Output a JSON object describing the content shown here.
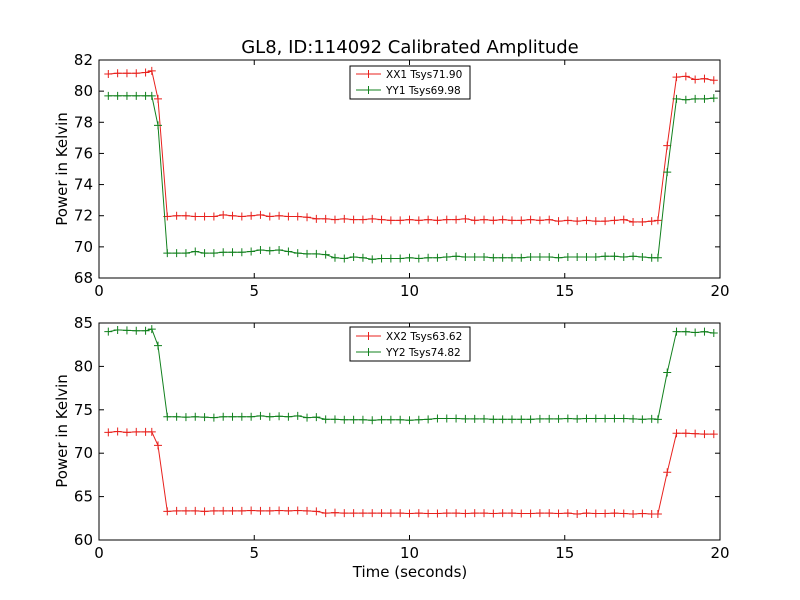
{
  "figure": {
    "title": "GL8, ID:114092 Calibrated Amplitude",
    "xlabel": "Time (seconds)"
  },
  "chart_data": [
    {
      "type": "line",
      "title": "GL8, ID:114092 Calibrated Amplitude",
      "xlabel": "",
      "ylabel": "Power in Kelvin",
      "xlim": [
        0,
        20
      ],
      "ylim": [
        68,
        82
      ],
      "xticks": [
        0,
        5,
        10,
        15,
        20
      ],
      "yticks": [
        68,
        70,
        72,
        74,
        76,
        78,
        80,
        82
      ],
      "grid": false,
      "legend_position": "top-center",
      "x": [
        0.3,
        0.6,
        0.9,
        1.2,
        1.5,
        1.7,
        1.9,
        2.2,
        2.5,
        2.8,
        3.1,
        3.4,
        3.7,
        4.0,
        4.3,
        4.6,
        4.9,
        5.2,
        5.5,
        5.8,
        6.1,
        6.4,
        6.7,
        7.0,
        7.3,
        7.6,
        7.9,
        8.2,
        8.5,
        8.8,
        9.1,
        9.4,
        9.7,
        10.0,
        10.3,
        10.6,
        10.9,
        11.2,
        11.5,
        11.8,
        12.1,
        12.4,
        12.7,
        13.0,
        13.3,
        13.6,
        13.9,
        14.2,
        14.5,
        14.8,
        15.1,
        15.4,
        15.7,
        16.0,
        16.3,
        16.6,
        16.9,
        17.2,
        17.5,
        17.8,
        18.0,
        18.3,
        18.6,
        18.9,
        19.2,
        19.5,
        19.8
      ],
      "series": [
        {
          "name": "XX1 Tsys71.90",
          "color": "#e8211d",
          "values": [
            81.1,
            81.15,
            81.15,
            81.15,
            81.2,
            81.3,
            79.5,
            71.95,
            72.0,
            72.0,
            71.95,
            71.95,
            71.95,
            72.05,
            72.0,
            71.95,
            72.0,
            72.05,
            71.95,
            72.0,
            71.95,
            71.95,
            71.9,
            71.8,
            71.8,
            71.75,
            71.8,
            71.75,
            71.75,
            71.8,
            71.75,
            71.7,
            71.7,
            71.75,
            71.7,
            71.75,
            71.7,
            71.75,
            71.75,
            71.8,
            71.7,
            71.75,
            71.7,
            71.75,
            71.7,
            71.7,
            71.75,
            71.7,
            71.75,
            71.65,
            71.7,
            71.65,
            71.7,
            71.65,
            71.65,
            71.7,
            71.75,
            71.6,
            71.6,
            71.65,
            71.7,
            76.5,
            80.9,
            80.95,
            80.75,
            80.8,
            80.7
          ]
        },
        {
          "name": "YY1 Tsys69.98",
          "color": "#11801d",
          "values": [
            79.7,
            79.7,
            79.7,
            79.7,
            79.7,
            79.7,
            77.8,
            69.6,
            69.6,
            69.6,
            69.7,
            69.6,
            69.6,
            69.65,
            69.65,
            69.65,
            69.7,
            69.8,
            69.75,
            69.8,
            69.7,
            69.6,
            69.55,
            69.55,
            69.5,
            69.3,
            69.25,
            69.35,
            69.3,
            69.2,
            69.25,
            69.25,
            69.25,
            69.3,
            69.25,
            69.3,
            69.3,
            69.35,
            69.4,
            69.35,
            69.35,
            69.35,
            69.3,
            69.3,
            69.3,
            69.3,
            69.35,
            69.35,
            69.35,
            69.3,
            69.35,
            69.35,
            69.35,
            69.35,
            69.4,
            69.4,
            69.35,
            69.4,
            69.35,
            69.3,
            69.3,
            74.8,
            79.5,
            79.45,
            79.5,
            79.5,
            79.55
          ]
        }
      ]
    },
    {
      "type": "line",
      "title": "",
      "xlabel": "Time (seconds)",
      "ylabel": "Power in Kelvin",
      "xlim": [
        0,
        20
      ],
      "ylim": [
        60,
        85
      ],
      "xticks": [
        0,
        5,
        10,
        15,
        20
      ],
      "yticks": [
        60,
        65,
        70,
        75,
        80,
        85
      ],
      "grid": false,
      "legend_position": "top-center",
      "x": [
        0.3,
        0.6,
        0.9,
        1.2,
        1.5,
        1.7,
        1.9,
        2.2,
        2.5,
        2.8,
        3.1,
        3.4,
        3.7,
        4.0,
        4.3,
        4.6,
        4.9,
        5.2,
        5.5,
        5.8,
        6.1,
        6.4,
        6.7,
        7.0,
        7.3,
        7.6,
        7.9,
        8.2,
        8.5,
        8.8,
        9.1,
        9.4,
        9.7,
        10.0,
        10.3,
        10.6,
        10.9,
        11.2,
        11.5,
        11.8,
        12.1,
        12.4,
        12.7,
        13.0,
        13.3,
        13.6,
        13.9,
        14.2,
        14.5,
        14.8,
        15.1,
        15.4,
        15.7,
        16.0,
        16.3,
        16.6,
        16.9,
        17.2,
        17.5,
        17.8,
        18.0,
        18.3,
        18.6,
        18.9,
        19.2,
        19.5,
        19.8
      ],
      "series": [
        {
          "name": "XX2 Tsys63.62",
          "color": "#e8211d",
          "values": [
            72.4,
            72.5,
            72.4,
            72.45,
            72.45,
            72.45,
            70.9,
            63.3,
            63.35,
            63.35,
            63.35,
            63.3,
            63.35,
            63.35,
            63.35,
            63.35,
            63.4,
            63.35,
            63.35,
            63.4,
            63.35,
            63.4,
            63.35,
            63.3,
            63.1,
            63.15,
            63.1,
            63.1,
            63.1,
            63.1,
            63.1,
            63.1,
            63.1,
            63.05,
            63.1,
            63.05,
            63.05,
            63.1,
            63.1,
            63.05,
            63.1,
            63.1,
            63.05,
            63.1,
            63.1,
            63.05,
            63.05,
            63.1,
            63.1,
            63.05,
            63.1,
            63.0,
            63.1,
            63.05,
            63.05,
            63.1,
            63.05,
            63.0,
            63.05,
            63.0,
            63.0,
            67.8,
            72.3,
            72.3,
            72.25,
            72.2,
            72.2
          ]
        },
        {
          "name": "YY2 Tsys74.82",
          "color": "#11801d",
          "values": [
            84.0,
            84.2,
            84.15,
            84.1,
            84.1,
            84.3,
            82.4,
            74.2,
            74.2,
            74.15,
            74.2,
            74.15,
            74.1,
            74.2,
            74.2,
            74.2,
            74.2,
            74.3,
            74.2,
            74.25,
            74.2,
            74.3,
            74.1,
            74.15,
            73.9,
            73.9,
            73.85,
            73.85,
            73.85,
            73.8,
            73.85,
            73.85,
            73.85,
            73.8,
            73.85,
            73.9,
            74.0,
            74.0,
            74.0,
            73.95,
            73.95,
            73.95,
            73.9,
            73.9,
            73.9,
            73.9,
            73.9,
            73.95,
            73.95,
            73.95,
            74.0,
            73.95,
            74.0,
            74.0,
            74.0,
            74.0,
            74.0,
            73.95,
            73.9,
            73.95,
            73.9,
            79.3,
            84.0,
            84.0,
            83.9,
            84.0,
            83.85
          ]
        }
      ]
    }
  ]
}
